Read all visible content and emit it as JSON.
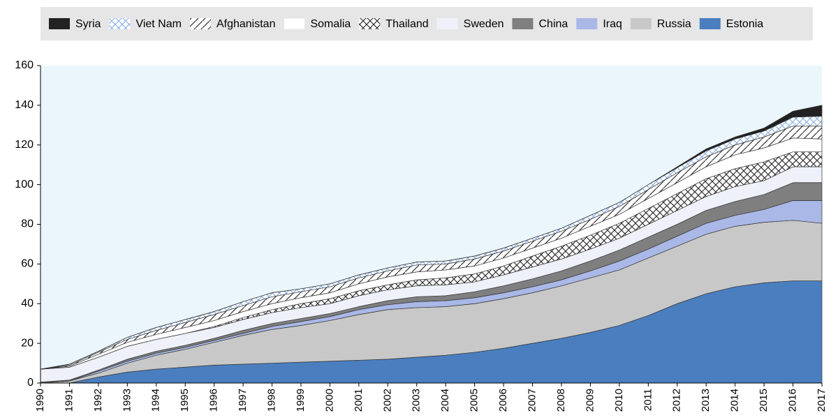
{
  "chart_data": {
    "type": "stacked_area",
    "categories": [
      "1990",
      "1991",
      "1992",
      "1993",
      "1994",
      "1995",
      "1996",
      "1997",
      "1998",
      "1999",
      "2000",
      "2001",
      "2002",
      "2003",
      "2004",
      "2005",
      "2006",
      "2007",
      "2008",
      "2009",
      "2010",
      "2011",
      "2012",
      "2013",
      "2014",
      "2015",
      "2016",
      "2017"
    ],
    "ylim": [
      0,
      160
    ],
    "yticks": [
      0,
      20,
      40,
      60,
      80,
      100,
      120,
      140,
      160
    ],
    "series": [
      {
        "name": "Estonia",
        "color": "#4a7ebf",
        "values": [
          0,
          0,
          3,
          5.5,
          7,
          8,
          9,
          9.5,
          10,
          10.5,
          11,
          11.5,
          12,
          13,
          14,
          15.5,
          17.5,
          20,
          22.5,
          25.5,
          29,
          34,
          40,
          45,
          48.5,
          50.5,
          51.5,
          51.5
        ]
      },
      {
        "name": "Russia",
        "color": "#c8c8c8",
        "values": [
          0,
          1,
          2,
          4.5,
          7,
          9,
          11.5,
          14.5,
          17,
          18.5,
          20.5,
          23,
          25,
          25,
          24.5,
          24.5,
          25,
          25.5,
          26.5,
          27.5,
          28,
          29,
          29,
          30,
          30.5,
          30.5,
          30.5,
          29
        ]
      },
      {
        "name": "Iraq",
        "color": "#a9b8e6",
        "values": [
          0,
          0,
          1,
          1,
          1,
          1,
          1,
          1,
          1.5,
          2,
          2,
          2.5,
          2.5,
          3,
          3,
          3,
          3,
          3,
          3,
          3.5,
          4.5,
          4.5,
          5,
          5.5,
          5.5,
          6.5,
          10,
          11.5
        ]
      },
      {
        "name": "China",
        "color": "#7f7f7f",
        "values": [
          0.5,
          0.5,
          0.5,
          1,
          1,
          1,
          1,
          1.5,
          1.5,
          1.5,
          1.5,
          1.5,
          2,
          2.5,
          2.5,
          3,
          3.5,
          4,
          4.5,
          5,
          5.5,
          6,
          6,
          6.5,
          7,
          7.5,
          9,
          9
        ]
      },
      {
        "name": "Sweden",
        "color": "#eef1fa",
        "values": [
          6.5,
          6.5,
          6.5,
          6.5,
          6,
          6,
          5.5,
          5.5,
          5.5,
          5.5,
          5,
          5.5,
          5.5,
          5.5,
          5.5,
          5,
          5.5,
          6,
          6,
          6,
          6,
          6.5,
          7,
          7,
          7.5,
          7,
          8,
          8
        ]
      },
      {
        "name": "Thailand",
        "color": "#ffffff",
        "hatch": "cross",
        "hatch_color": "#333333",
        "values": [
          0,
          0,
          0,
          0,
          0,
          0,
          0.5,
          1,
          1.5,
          2,
          2.5,
          2.5,
          2.5,
          3,
          3.5,
          4,
          4.5,
          5.5,
          6.5,
          7,
          7.5,
          8,
          8.5,
          9,
          9,
          9.5,
          7.5,
          7.5
        ]
      },
      {
        "name": "Somalia",
        "color": "#ffffff",
        "values": [
          0,
          0.5,
          1.5,
          2,
          2.5,
          3,
          3,
          3,
          3,
          3,
          3,
          3.5,
          4,
          4,
          4,
          4,
          4,
          4,
          4,
          4.5,
          4.5,
          5,
          5.5,
          6,
          7,
          7,
          7,
          6.5
        ]
      },
      {
        "name": "Afghanistan",
        "color": "#ffffff",
        "hatch": "diagonal",
        "hatch_color": "#333333",
        "values": [
          0,
          0.5,
          1,
          1.5,
          2,
          2.5,
          3,
          3,
          3.5,
          3,
          3,
          3,
          3,
          3.5,
          3,
          3.5,
          3.5,
          3.5,
          3.5,
          3.5,
          4,
          4.5,
          5,
          5,
          5,
          5.5,
          6,
          6.5
        ]
      },
      {
        "name": "Viet Nam",
        "color": "#ffffff",
        "hatch": "cross",
        "hatch_color": "#8fb4e3",
        "values": [
          0,
          0.5,
          0.5,
          1,
          1.5,
          1.5,
          1.5,
          2,
          2,
          1.5,
          1.5,
          1.5,
          1.5,
          1.5,
          1.5,
          1.5,
          1.5,
          1.5,
          1.5,
          2,
          2,
          2.5,
          2.5,
          3,
          3,
          3,
          4.5,
          5
        ]
      },
      {
        "name": "Syria",
        "color": "#222222",
        "values": [
          0,
          0,
          0,
          0,
          0,
          0,
          0,
          0,
          0,
          0,
          0,
          0,
          0,
          0,
          0,
          0,
          0,
          0,
          0,
          0,
          0,
          0,
          0.5,
          1,
          1,
          1.5,
          3,
          5.5
        ]
      }
    ]
  }
}
